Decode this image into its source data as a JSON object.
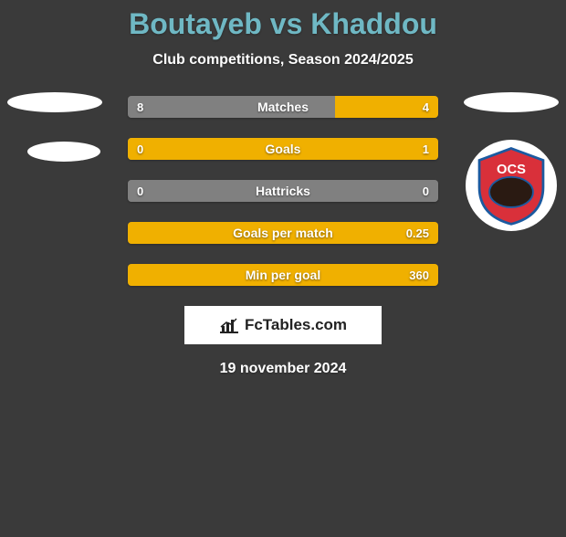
{
  "background_color": "#3a3a3a",
  "text_color": "#ffffff",
  "title": "Boutayeb vs Khaddou",
  "title_color": "#6fb8c4",
  "subtitle": "Club competitions, Season 2024/2025",
  "left_player_color": "#808080",
  "right_player_color": "#f0b000",
  "neutral_bar_color": "#808080",
  "bar_track_color": "#5a5a5a",
  "rows": [
    {
      "label": "Matches",
      "left": "8",
      "right": "4",
      "left_pct": 66.7,
      "right_pct": 33.3
    },
    {
      "label": "Goals",
      "left": "0",
      "right": "1",
      "left_pct": 20,
      "right_pct": 100
    },
    {
      "label": "Hattricks",
      "left": "0",
      "right": "0",
      "left_pct": 100,
      "right_pct": 0,
      "neutral": true
    },
    {
      "label": "Goals per match",
      "left": "",
      "right": "0.25",
      "left_pct": 0,
      "right_pct": 100
    },
    {
      "label": "Min per goal",
      "left": "",
      "right": "360",
      "left_pct": 0,
      "right_pct": 100
    }
  ],
  "watermark": "FcTables.com",
  "date": "19 november 2024",
  "right_club": {
    "name": "OCS",
    "shield_fill": "#d9303a",
    "shield_stroke": "#1b5aa0",
    "text_color": "#ffffff"
  }
}
